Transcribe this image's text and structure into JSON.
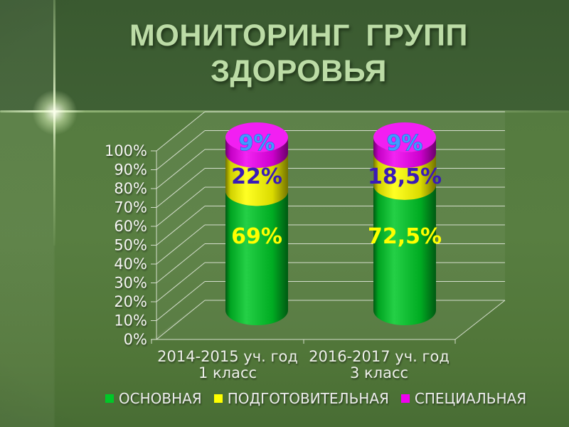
{
  "slide": {
    "title": "МОНИТОРИНГ ГРУПП ЗДОРОВЬЯ"
  },
  "chart_data": {
    "type": "bar",
    "subtype": "3d-stacked-cylinder",
    "stacked": true,
    "unit": "%",
    "title": "",
    "xlabel": "",
    "ylabel": "",
    "ylim": [
      0,
      100
    ],
    "grid": true,
    "legend_position": "bottom",
    "categories": [
      [
        "2014-2015 уч. год",
        "1 класс"
      ],
      [
        "2016-2017 уч. год",
        "3 класс"
      ]
    ],
    "y_tick_labels": [
      "0%",
      "10%",
      "20%",
      "30%",
      "40%",
      "50%",
      "60%",
      "70%",
      "80%",
      "90%",
      "100%"
    ],
    "series": [
      {
        "name": "ОСНОВНАЯ",
        "color": "#00C828",
        "values": [
          69,
          72.5
        ],
        "labels": [
          "69%",
          "72,5%"
        ],
        "label_color": "#FFFF00"
      },
      {
        "name": "ПОДГОТОВИТЕЛЬНАЯ",
        "color": "#FFFF00",
        "values": [
          22,
          18.5
        ],
        "labels": [
          "22%",
          "18,5%"
        ],
        "label_color": "#3A1AB8"
      },
      {
        "name": "СПЕЦИАЛЬНАЯ",
        "color": "#F000F0",
        "values": [
          9,
          9
        ],
        "labels": [
          "9%",
          "9%"
        ],
        "label_color": "#3F9BFF"
      }
    ]
  }
}
